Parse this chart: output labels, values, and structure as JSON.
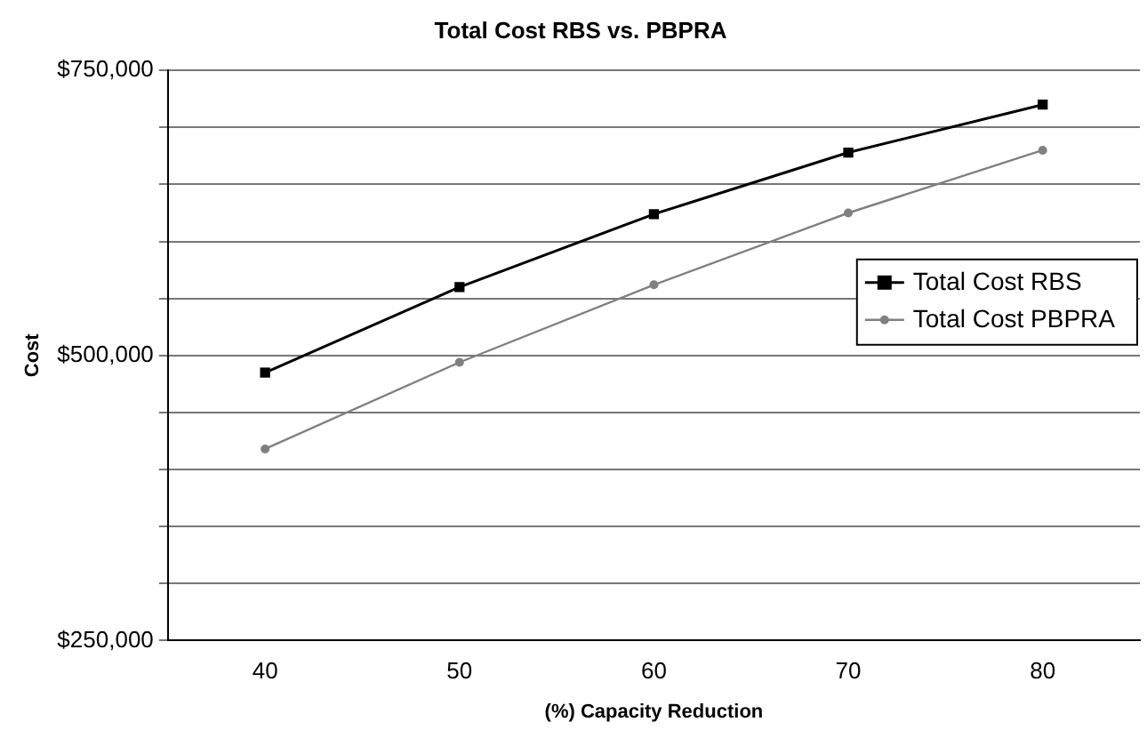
{
  "chart_data": {
    "type": "line",
    "title": "Total Cost RBS vs. PBPRA",
    "xlabel": "(%) Capacity Reduction",
    "ylabel": "Cost",
    "categories": [
      "40",
      "50",
      "60",
      "70",
      "80"
    ],
    "series": [
      {
        "name": "Total Cost RBS",
        "color": "#000000",
        "marker": "square",
        "values": [
          485000,
          560000,
          624000,
          678000,
          720000
        ]
      },
      {
        "name": "Total Cost PBPRA",
        "color": "#808080",
        "marker": "circle",
        "values": [
          418000,
          494000,
          562000,
          625000,
          680000
        ]
      }
    ],
    "ylim": [
      250000,
      750000
    ],
    "yticks": [
      {
        "value": 250000,
        "label": "$250,000"
      },
      {
        "value": 300000,
        "label": null
      },
      {
        "value": 350000,
        "label": null
      },
      {
        "value": 400000,
        "label": null
      },
      {
        "value": 450000,
        "label": null
      },
      {
        "value": 500000,
        "label": "$500,000"
      },
      {
        "value": 550000,
        "label": null
      },
      {
        "value": 600000,
        "label": null
      },
      {
        "value": 650000,
        "label": null
      },
      {
        "value": 700000,
        "label": null
      },
      {
        "value": 750000,
        "label": "$750,000"
      }
    ],
    "grid": "y",
    "legend": "right",
    "line_style": "solid"
  }
}
